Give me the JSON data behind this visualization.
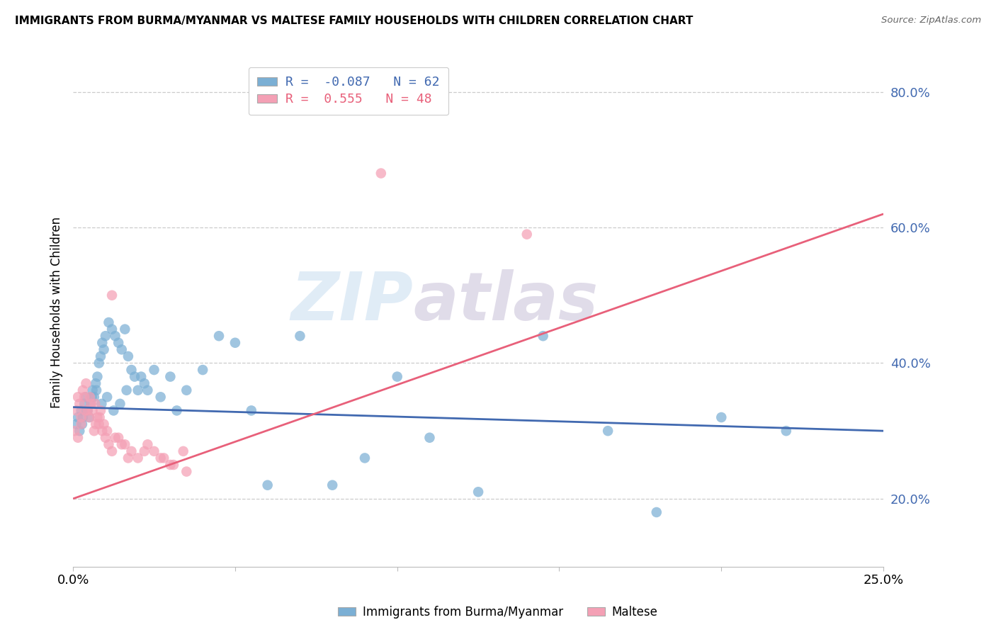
{
  "title": "IMMIGRANTS FROM BURMA/MYANMAR VS MALTESE FAMILY HOUSEHOLDS WITH CHILDREN CORRELATION CHART",
  "source": "Source: ZipAtlas.com",
  "ylabel": "Family Households with Children",
  "y_ticks": [
    20.0,
    40.0,
    60.0,
    80.0
  ],
  "y_tick_labels": [
    "20.0%",
    "40.0%",
    "60.0%",
    "80.0%"
  ],
  "x_range": [
    0.0,
    25.0
  ],
  "y_range": [
    10.0,
    85.0
  ],
  "blue_R": -0.087,
  "blue_N": 62,
  "pink_R": 0.555,
  "pink_N": 48,
  "blue_color": "#7bafd4",
  "pink_color": "#f4a0b5",
  "blue_line_color": "#4169b0",
  "pink_line_color": "#e8607a",
  "watermark_zip": "ZIP",
  "watermark_atlas": "atlas",
  "legend_blue_label": "Immigrants from Burma/Myanmar",
  "legend_pink_label": "Maltese",
  "blue_points_x": [
    0.1,
    0.2,
    0.25,
    0.3,
    0.35,
    0.4,
    0.45,
    0.5,
    0.55,
    0.6,
    0.65,
    0.7,
    0.75,
    0.8,
    0.85,
    0.9,
    0.95,
    1.0,
    1.1,
    1.2,
    1.3,
    1.4,
    1.5,
    1.6,
    1.7,
    1.8,
    1.9,
    2.0,
    2.1,
    2.2,
    2.3,
    2.5,
    2.7,
    3.0,
    3.2,
    3.5,
    4.0,
    4.5,
    5.0,
    5.5,
    6.0,
    7.0,
    8.0,
    9.0,
    10.0,
    11.0,
    12.5,
    14.5,
    16.5,
    18.0,
    20.0,
    22.0,
    0.15,
    0.28,
    0.42,
    0.58,
    0.72,
    0.88,
    1.05,
    1.25,
    1.45,
    1.65
  ],
  "blue_points_y": [
    31.0,
    30.0,
    33.0,
    32.0,
    34.0,
    35.0,
    33.0,
    32.0,
    34.0,
    36.0,
    35.0,
    37.0,
    38.0,
    40.0,
    41.0,
    43.0,
    42.0,
    44.0,
    46.0,
    45.0,
    44.0,
    43.0,
    42.0,
    45.0,
    41.0,
    39.0,
    38.0,
    36.0,
    38.0,
    37.0,
    36.0,
    39.0,
    35.0,
    38.0,
    33.0,
    36.0,
    39.0,
    44.0,
    43.0,
    33.0,
    22.0,
    44.0,
    22.0,
    26.0,
    38.0,
    29.0,
    21.0,
    44.0,
    30.0,
    18.0,
    32.0,
    30.0,
    32.0,
    31.0,
    33.0,
    35.0,
    36.0,
    34.0,
    35.0,
    33.0,
    34.0,
    36.0
  ],
  "pink_points_x": [
    0.05,
    0.1,
    0.15,
    0.2,
    0.25,
    0.3,
    0.35,
    0.4,
    0.45,
    0.5,
    0.55,
    0.6,
    0.65,
    0.7,
    0.75,
    0.8,
    0.85,
    0.9,
    1.0,
    1.1,
    1.2,
    1.4,
    1.6,
    1.8,
    2.0,
    2.3,
    2.5,
    2.8,
    3.1,
    3.4,
    0.15,
    0.25,
    0.38,
    0.52,
    0.68,
    0.82,
    0.95,
    1.05,
    1.3,
    1.5,
    1.7,
    2.2,
    2.7,
    3.0,
    3.5,
    9.5,
    14.0,
    1.2
  ],
  "pink_points_y": [
    30.0,
    33.0,
    35.0,
    34.0,
    32.0,
    36.0,
    35.0,
    37.0,
    33.0,
    32.0,
    34.0,
    33.0,
    30.0,
    31.0,
    32.0,
    31.0,
    33.0,
    30.0,
    29.0,
    28.0,
    27.0,
    29.0,
    28.0,
    27.0,
    26.0,
    28.0,
    27.0,
    26.0,
    25.0,
    27.0,
    29.0,
    31.0,
    33.0,
    35.0,
    34.0,
    32.0,
    31.0,
    30.0,
    29.0,
    28.0,
    26.0,
    27.0,
    26.0,
    25.0,
    24.0,
    68.0,
    59.0,
    50.0
  ],
  "blue_line_x0": 0.0,
  "blue_line_x1": 25.0,
  "blue_line_y0": 33.5,
  "blue_line_y1": 30.0,
  "pink_line_x0": 0.0,
  "pink_line_x1": 25.0,
  "pink_line_y0": 20.0,
  "pink_line_y1": 62.0
}
